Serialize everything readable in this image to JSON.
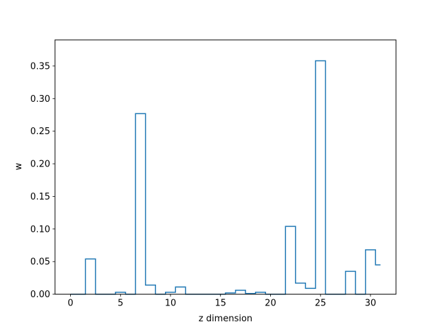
{
  "chart_data": {
    "type": "step",
    "title": "",
    "xlabel": "z dimension",
    "ylabel": "w",
    "xlim": [
      -1.55,
      32.55
    ],
    "ylim": [
      0,
      0.39
    ],
    "xticks": [
      0,
      5,
      10,
      15,
      20,
      25,
      30
    ],
    "xtick_labels": [
      "0",
      "5",
      "10",
      "15",
      "20",
      "25",
      "30"
    ],
    "yticks": [
      0.0,
      0.05,
      0.1,
      0.15,
      0.2,
      0.25,
      0.3,
      0.35
    ],
    "ytick_labels": [
      "0.00",
      "0.05",
      "0.10",
      "0.15",
      "0.20",
      "0.25",
      "0.30",
      "0.35"
    ],
    "grid": false,
    "line_color": "#1f77b4",
    "series": [
      {
        "x": [
          0,
          1,
          2,
          3,
          4,
          5,
          6,
          7,
          8,
          9,
          10,
          11,
          12,
          13,
          14,
          15,
          16,
          17,
          18,
          19,
          20,
          21,
          22,
          23,
          24,
          25,
          26,
          27,
          28,
          29,
          30,
          31
        ],
        "values": [
          0.0,
          0.0,
          0.054,
          0.0,
          0.0,
          0.003,
          0.0,
          0.277,
          0.014,
          0.0,
          0.003,
          0.011,
          0.0,
          0.0,
          0.0,
          0.0,
          0.002,
          0.006,
          0.001,
          0.003,
          0.0,
          0.0,
          0.104,
          0.017,
          0.009,
          0.358,
          0.0,
          0.0,
          0.035,
          0.0,
          0.068,
          0.045
        ]
      }
    ]
  }
}
